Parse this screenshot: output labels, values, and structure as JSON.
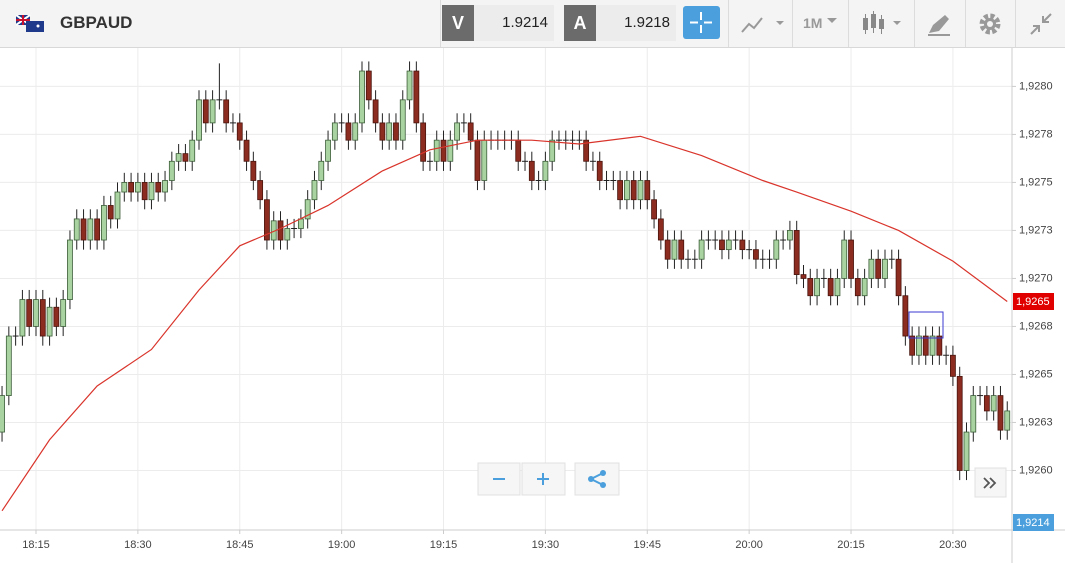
{
  "toolbar": {
    "symbol": "GBPAUD",
    "bid_label": "V",
    "bid": 1.9214,
    "ask_label": "A",
    "ask": 1.9218,
    "interval": "1M"
  },
  "chart_data": {
    "type": "candlestick",
    "grid": true,
    "up_color": "#a9d3a0",
    "down_color": "#8c2b1f",
    "ma_color": "#d9342b",
    "price_tag": "1,9265",
    "bid_tag": "1,9214",
    "xlim": [
      1089.7,
      1238.7
    ],
    "xticks": [
      {
        "value": 1095,
        "label": "18:15"
      },
      {
        "value": 1110,
        "label": "18:30"
      },
      {
        "value": 1125,
        "label": "18:45"
      },
      {
        "value": 1140,
        "label": "19:00"
      },
      {
        "value": 1155,
        "label": "19:15"
      },
      {
        "value": 1170,
        "label": "19:30"
      },
      {
        "value": 1185,
        "label": "19:45"
      },
      {
        "value": 1200,
        "label": "20:00"
      },
      {
        "value": 1215,
        "label": "20:15"
      },
      {
        "value": 1230,
        "label": "20:30"
      }
    ],
    "ylim": [
      1.92569,
      1.9282
    ],
    "yticks": [
      {
        "value": 1.928,
        "label": "1,9280"
      },
      {
        "value": 1.92775,
        "label": "1,9278"
      },
      {
        "value": 1.9275,
        "label": "1,9275"
      },
      {
        "value": 1.92725,
        "label": "1,9273"
      },
      {
        "value": 1.927,
        "label": "1,9270"
      },
      {
        "value": 1.92675,
        "label": "1,9268"
      },
      {
        "value": 1.9265,
        "label": "1,9265"
      },
      {
        "value": 1.92625,
        "label": "1,9263"
      },
      {
        "value": 1.926,
        "label": "1,9260"
      }
    ],
    "x": [
      1090,
      1091,
      1092,
      1093,
      1094,
      1095,
      1096,
      1097,
      1098,
      1099,
      1100,
      1101,
      1102,
      1103,
      1104,
      1105,
      1106,
      1107,
      1108,
      1109,
      1110,
      1111,
      1112,
      1113,
      1114,
      1115,
      1116,
      1117,
      1118,
      1119,
      1120,
      1121,
      1122,
      1123,
      1124,
      1125,
      1126,
      1127,
      1128,
      1129,
      1130,
      1131,
      1132,
      1133,
      1134,
      1135,
      1136,
      1137,
      1138,
      1139,
      1140,
      1141,
      1142,
      1143,
      1144,
      1145,
      1146,
      1147,
      1148,
      1149,
      1150,
      1151,
      1152,
      1153,
      1154,
      1155,
      1156,
      1157,
      1158,
      1159,
      1160,
      1161,
      1162,
      1163,
      1164,
      1165,
      1166,
      1167,
      1168,
      1169,
      1170,
      1171,
      1172,
      1173,
      1174,
      1175,
      1176,
      1177,
      1178,
      1179,
      1180,
      1181,
      1182,
      1183,
      1184,
      1185,
      1186,
      1187,
      1188,
      1189,
      1190,
      1191,
      1192,
      1193,
      1194,
      1195,
      1196,
      1197,
      1198,
      1199,
      1200,
      1201,
      1202,
      1203,
      1204,
      1205,
      1206,
      1207,
      1208,
      1209,
      1210,
      1211,
      1212,
      1213,
      1214,
      1215,
      1216,
      1217,
      1218,
      1219,
      1220,
      1221,
      1222,
      1223,
      1224,
      1225,
      1226,
      1227,
      1228,
      1229,
      1230,
      1231,
      1232,
      1233,
      1234,
      1235,
      1236,
      1237,
      1238
    ],
    "open": [
      1.9262,
      1.92639,
      1.9267,
      1.9267,
      1.92689,
      1.92675,
      1.92689,
      1.9267,
      1.92685,
      1.92675,
      1.92689,
      1.9272,
      1.92731,
      1.9272,
      1.92731,
      1.9272,
      1.92738,
      1.92731,
      1.92745,
      1.9275,
      1.92745,
      1.9275,
      1.92741,
      1.9275,
      1.92745,
      1.92751,
      1.92761,
      1.92765,
      1.92761,
      1.92772,
      1.92793,
      1.92781,
      1.92793,
      1.92793,
      1.92781,
      1.92781,
      1.92772,
      1.92761,
      1.92751,
      1.92741,
      1.9272,
      1.9273,
      1.9272,
      1.92726,
      1.92726,
      1.92731,
      1.92741,
      1.92751,
      1.92761,
      1.92772,
      1.92781,
      1.92781,
      1.92772,
      1.92781,
      1.92808,
      1.92793,
      1.92781,
      1.92772,
      1.92781,
      1.92772,
      1.92793,
      1.92808,
      1.92781,
      1.92761,
      1.92761,
      1.92772,
      1.92761,
      1.92772,
      1.92781,
      1.92781,
      1.92772,
      1.92751,
      1.92772,
      1.92772,
      1.92772,
      1.92772,
      1.92772,
      1.92761,
      1.92761,
      1.92751,
      1.92751,
      1.92761,
      1.92772,
      1.92772,
      1.92772,
      1.92772,
      1.92772,
      1.92761,
      1.92761,
      1.92751,
      1.92751,
      1.92751,
      1.92741,
      1.92751,
      1.92741,
      1.92751,
      1.92741,
      1.92731,
      1.9272,
      1.9271,
      1.9272,
      1.9271,
      1.9271,
      1.9271,
      1.9272,
      1.9272,
      1.9272,
      1.92715,
      1.9272,
      1.9272,
      1.92715,
      1.92715,
      1.9271,
      1.9271,
      1.9271,
      1.9272,
      1.9272,
      1.92725,
      1.92702,
      1.927,
      1.92691,
      1.927,
      1.927,
      1.92691,
      1.927,
      1.9272,
      1.927,
      1.92691,
      1.927,
      1.9271,
      1.927,
      1.9271,
      1.9271,
      1.92691,
      1.9267,
      1.9266,
      1.9267,
      1.9266,
      1.9267,
      1.9266,
      1.9266,
      1.92649,
      1.926,
      1.9262,
      1.92639,
      1.92639,
      1.92631,
      1.92639,
      1.92621
    ],
    "high": [
      1.92644,
      1.92675,
      1.92675,
      1.92694,
      1.92694,
      1.92694,
      1.92694,
      1.9269,
      1.9269,
      1.92694,
      1.92725,
      1.92736,
      1.92736,
      1.92736,
      1.92736,
      1.92743,
      1.92743,
      1.9275,
      1.92755,
      1.92755,
      1.92755,
      1.92755,
      1.92755,
      1.92755,
      1.92756,
      1.92766,
      1.9277,
      1.9277,
      1.92777,
      1.92798,
      1.92798,
      1.92798,
      1.92812,
      1.92798,
      1.92786,
      1.92786,
      1.92777,
      1.92766,
      1.92756,
      1.92746,
      1.92735,
      1.92735,
      1.92731,
      1.92731,
      1.92736,
      1.92746,
      1.92756,
      1.92766,
      1.92777,
      1.92786,
      1.92786,
      1.92786,
      1.92786,
      1.92813,
      1.92813,
      1.92798,
      1.92786,
      1.92786,
      1.92786,
      1.92798,
      1.92813,
      1.92813,
      1.92786,
      1.92766,
      1.92777,
      1.92777,
      1.92777,
      1.92786,
      1.92786,
      1.92786,
      1.92777,
      1.92777,
      1.92777,
      1.92777,
      1.92777,
      1.92777,
      1.92777,
      1.92766,
      1.92766,
      1.92756,
      1.92766,
      1.92777,
      1.92777,
      1.92777,
      1.92777,
      1.92777,
      1.92777,
      1.92766,
      1.92766,
      1.92756,
      1.92756,
      1.92756,
      1.92756,
      1.92756,
      1.92756,
      1.92756,
      1.92746,
      1.92736,
      1.92725,
      1.92725,
      1.92725,
      1.92715,
      1.92715,
      1.92725,
      1.92725,
      1.92725,
      1.92725,
      1.92725,
      1.92725,
      1.92725,
      1.9272,
      1.9272,
      1.92715,
      1.92715,
      1.92725,
      1.92725,
      1.9273,
      1.9273,
      1.92707,
      1.92705,
      1.92705,
      1.92705,
      1.92705,
      1.92705,
      1.92725,
      1.92725,
      1.92705,
      1.92705,
      1.92715,
      1.92715,
      1.92715,
      1.92715,
      1.92715,
      1.92696,
      1.92675,
      1.92675,
      1.92675,
      1.92675,
      1.92675,
      1.92665,
      1.92665,
      1.92654,
      1.92625,
      1.92644,
      1.92644,
      1.92644,
      1.92644,
      1.92644,
      1.92636
    ],
    "low": [
      1.92615,
      1.92634,
      1.92665,
      1.92665,
      1.9267,
      1.9267,
      1.92665,
      1.92665,
      1.9267,
      1.9267,
      1.92684,
      1.92715,
      1.92715,
      1.92715,
      1.92715,
      1.92715,
      1.92726,
      1.92726,
      1.9274,
      1.9274,
      1.9274,
      1.92736,
      1.92736,
      1.9274,
      1.9274,
      1.92746,
      1.92756,
      1.92756,
      1.92756,
      1.92767,
      1.92776,
      1.92776,
      1.92788,
      1.92776,
      1.92776,
      1.92767,
      1.92756,
      1.92746,
      1.92736,
      1.92715,
      1.92715,
      1.92715,
      1.92715,
      1.92721,
      1.92721,
      1.92726,
      1.92736,
      1.92746,
      1.92756,
      1.92767,
      1.92776,
      1.92767,
      1.92767,
      1.92776,
      1.92788,
      1.92776,
      1.92767,
      1.92767,
      1.92767,
      1.92767,
      1.92788,
      1.92776,
      1.92756,
      1.92756,
      1.92756,
      1.92756,
      1.92756,
      1.92767,
      1.92776,
      1.92767,
      1.92746,
      1.92746,
      1.92767,
      1.92767,
      1.92767,
      1.92767,
      1.92756,
      1.92756,
      1.92746,
      1.92746,
      1.92746,
      1.92756,
      1.92767,
      1.92767,
      1.92767,
      1.92767,
      1.92756,
      1.92756,
      1.92746,
      1.92746,
      1.92746,
      1.92736,
      1.92736,
      1.92736,
      1.92736,
      1.92736,
      1.92726,
      1.92715,
      1.92705,
      1.92705,
      1.92705,
      1.92705,
      1.92705,
      1.92705,
      1.92715,
      1.92715,
      1.9271,
      1.9271,
      1.92715,
      1.9271,
      1.9271,
      1.92705,
      1.92705,
      1.92705,
      1.92705,
      1.92715,
      1.92715,
      1.92697,
      1.92695,
      1.92686,
      1.92686,
      1.92695,
      1.92686,
      1.92686,
      1.92695,
      1.92695,
      1.92686,
      1.92686,
      1.92695,
      1.92695,
      1.92695,
      1.92705,
      1.92686,
      1.92665,
      1.92655,
      1.92655,
      1.92655,
      1.92655,
      1.92655,
      1.92655,
      1.92644,
      1.92595,
      1.92595,
      1.92615,
      1.92634,
      1.92626,
      1.92626,
      1.92616,
      1.92616
    ],
    "close": [
      1.92639,
      1.9267,
      1.9267,
      1.92689,
      1.92675,
      1.92689,
      1.9267,
      1.92685,
      1.92675,
      1.92689,
      1.9272,
      1.92731,
      1.9272,
      1.92731,
      1.9272,
      1.92738,
      1.92731,
      1.92745,
      1.9275,
      1.92745,
      1.9275,
      1.92741,
      1.9275,
      1.92745,
      1.92751,
      1.92761,
      1.92765,
      1.92761,
      1.92772,
      1.92793,
      1.92781,
      1.92793,
      1.92793,
      1.92781,
      1.92781,
      1.92772,
      1.92761,
      1.92751,
      1.92741,
      1.9272,
      1.9273,
      1.9272,
      1.92726,
      1.92726,
      1.92731,
      1.92741,
      1.92751,
      1.92761,
      1.92772,
      1.92781,
      1.92781,
      1.92772,
      1.92781,
      1.92808,
      1.92793,
      1.92781,
      1.92772,
      1.92781,
      1.92772,
      1.92793,
      1.92808,
      1.92781,
      1.92761,
      1.92761,
      1.92772,
      1.92761,
      1.92772,
      1.92781,
      1.92781,
      1.92772,
      1.92751,
      1.92772,
      1.92772,
      1.92772,
      1.92772,
      1.92772,
      1.92761,
      1.92761,
      1.92751,
      1.92751,
      1.92761,
      1.92772,
      1.92772,
      1.92772,
      1.92772,
      1.92772,
      1.92761,
      1.92761,
      1.92751,
      1.92751,
      1.92751,
      1.92741,
      1.92751,
      1.92741,
      1.92751,
      1.92741,
      1.92731,
      1.9272,
      1.9271,
      1.9272,
      1.9271,
      1.9271,
      1.9271,
      1.9272,
      1.9272,
      1.9272,
      1.92715,
      1.9272,
      1.9272,
      1.92715,
      1.92715,
      1.9271,
      1.9271,
      1.9271,
      1.9272,
      1.9272,
      1.92725,
      1.92702,
      1.927,
      1.92691,
      1.927,
      1.927,
      1.92691,
      1.927,
      1.9272,
      1.927,
      1.92691,
      1.927,
      1.9271,
      1.927,
      1.9271,
      1.9271,
      1.92691,
      1.9267,
      1.9266,
      1.9267,
      1.9266,
      1.9267,
      1.9266,
      1.9266,
      1.92649,
      1.926,
      1.9262,
      1.92639,
      1.92639,
      1.92631,
      1.92639,
      1.92621,
      1.92631
    ],
    "ma": {
      "x": [
        1090,
        1097,
        1104,
        1112,
        1119,
        1125,
        1131,
        1138,
        1146,
        1153,
        1160,
        1168,
        1175,
        1184,
        1193,
        1202,
        1207,
        1215,
        1222,
        1230,
        1238
      ],
      "values": [
        1.92579,
        1.92616,
        1.92644,
        1.92663,
        1.92694,
        1.92717,
        1.92726,
        1.92738,
        1.92756,
        1.92767,
        1.92772,
        1.92772,
        1.9277,
        1.92774,
        1.92764,
        1.92751,
        1.92745,
        1.92735,
        1.92725,
        1.92709,
        1.92688
      ]
    }
  }
}
